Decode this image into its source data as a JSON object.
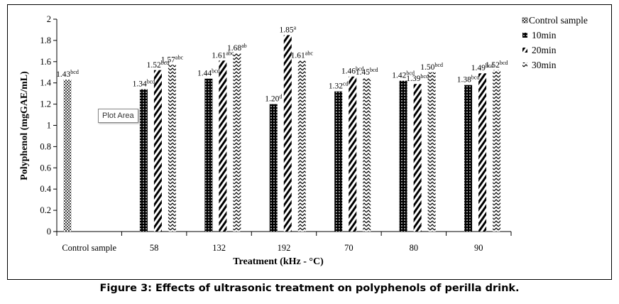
{
  "caption": "Figure 3: Effects of ultrasonic treatment on polyphenols of perilla drink.",
  "tooltip": "Plot Area",
  "chart_data": {
    "type": "bar",
    "title": "",
    "xlabel": "Treatment (kHz - °C)",
    "ylabel": "Polyphenol (mgGAE/mL)",
    "ylim": [
      0,
      2
    ],
    "yticks": [
      "0",
      "0.2",
      "0.4",
      "0.6",
      "0.8",
      "1",
      "1.2",
      "1.4",
      "1.6",
      "1.8",
      "2"
    ],
    "grid": false,
    "legend_position": "right",
    "categories": [
      "Control sample",
      "58",
      "132",
      "192",
      "70",
      "80",
      "90"
    ],
    "series": [
      {
        "name": "Control sample",
        "values": [
          1.43,
          null,
          null,
          null,
          null,
          null,
          null
        ],
        "labels": [
          [
            "1.43",
            "bcd"
          ],
          null,
          null,
          null,
          null,
          null,
          null
        ]
      },
      {
        "name": "10min",
        "values": [
          null,
          1.34,
          1.44,
          1.2,
          1.32,
          1.42,
          1.38
        ],
        "labels": [
          null,
          [
            "1.34",
            "bcd"
          ],
          [
            "1.44",
            "bcd"
          ],
          [
            "1.20",
            "d"
          ],
          [
            "1.32",
            "cd"
          ],
          [
            "1.42",
            "bcd"
          ],
          [
            "1.38",
            "bcd"
          ]
        ]
      },
      {
        "name": "20min",
        "values": [
          null,
          1.52,
          1.61,
          1.85,
          1.46,
          1.39,
          1.49
        ],
        "labels": [
          null,
          [
            "1.52",
            "bcd"
          ],
          [
            "1.61",
            "abc"
          ],
          [
            "1.85",
            "a"
          ],
          [
            "1.46",
            "bcd"
          ],
          [
            "1.39",
            "bcd"
          ],
          [
            "1.49",
            "bcd"
          ]
        ]
      },
      {
        "name": "30min",
        "values": [
          null,
          1.57,
          1.68,
          1.61,
          1.45,
          1.5,
          1.52
        ],
        "labels": [
          null,
          [
            "1.57",
            "abc"
          ],
          [
            "1.68",
            "ab"
          ],
          [
            "1.61",
            "abc"
          ],
          [
            "1.45",
            "bcd"
          ],
          [
            "1.50",
            "bcd"
          ],
          [
            "1.52",
            "bcd"
          ]
        ]
      }
    ]
  }
}
